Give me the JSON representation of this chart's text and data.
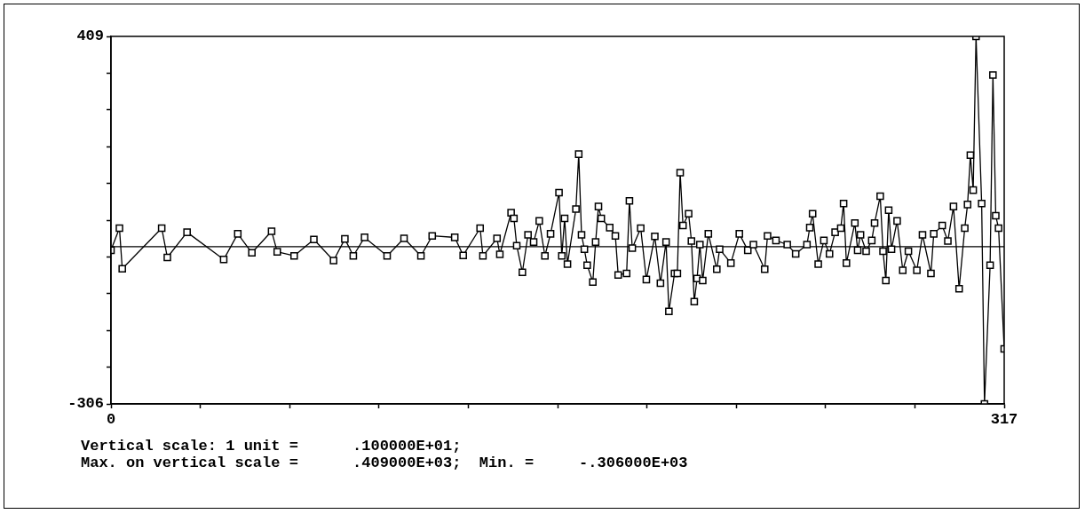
{
  "chart_data": {
    "type": "line",
    "marker": "square",
    "line_style": "solid",
    "x": [
      0,
      3,
      4,
      18,
      20,
      27,
      40,
      45,
      50,
      57,
      59,
      65,
      72,
      79,
      83,
      86,
      90,
      98,
      104,
      110,
      114,
      122,
      125,
      131,
      132,
      137,
      138,
      142,
      143,
      144,
      146,
      148,
      150,
      152,
      154,
      156,
      159,
      160,
      161,
      162,
      165,
      166,
      167,
      168,
      169,
      171,
      172,
      173,
      174,
      177,
      179,
      180,
      183,
      184,
      185,
      188,
      190,
      193,
      195,
      197,
      198,
      200,
      201,
      202,
      203,
      205,
      206,
      207,
      208,
      209,
      210,
      212,
      215,
      216,
      220,
      223,
      226,
      228,
      232,
      233,
      236,
      240,
      243,
      247,
      248,
      249,
      251,
      253,
      255,
      257,
      259,
      260,
      261,
      264,
      265,
      266,
      268,
      270,
      271,
      273,
      274,
      275,
      276,
      277,
      279,
      281,
      283,
      286,
      288,
      291,
      292,
      295,
      297,
      299,
      301,
      303,
      304,
      305,
      306,
      307,
      309,
      310,
      312,
      313,
      314,
      315,
      317
    ],
    "series": [
      {
        "color": "#000000",
        "values": [
          -7,
          36,
          -43,
          36,
          -21,
          28,
          -25,
          25,
          -12,
          30,
          -10,
          -18,
          14,
          -27,
          15,
          -18,
          18,
          -18,
          16,
          -18,
          21,
          18,
          -17,
          36,
          -18,
          16,
          -15,
          66,
          55,
          2,
          -50,
          23,
          9,
          50,
          -18,
          25,
          105,
          -18,
          55,
          -34,
          73,
          180,
          23,
          -5,
          -36,
          -69,
          9,
          78,
          55,
          37,
          21,
          -55,
          -52,
          89,
          -3,
          36,
          -64,
          20,
          -71,
          9,
          -126,
          -52,
          -52,
          144,
          41,
          64,
          11,
          -107,
          -62,
          4,
          -66,
          25,
          -44,
          -5,
          -32,
          25,
          -7,
          4,
          -44,
          21,
          12,
          4,
          -14,
          4,
          37,
          64,
          -34,
          12,
          -14,
          28,
          36,
          84,
          -32,
          46,
          -7,
          23,
          -9,
          12,
          46,
          98,
          -9,
          -66,
          71,
          -5,
          50,
          -46,
          -9,
          -46,
          23,
          -52,
          25,
          41,
          11,
          78,
          -82,
          36,
          82,
          178,
          110,
          409,
          84,
          -306,
          -36,
          334,
          60,
          36,
          -199
        ]
      }
    ],
    "xlim": [
      0,
      317
    ],
    "xticks": [
      0,
      {
        "value": 31.7,
        "label": null
      },
      {
        "value": 63.4,
        "label": null
      },
      {
        "value": 95.1,
        "label": null
      },
      {
        "value": 126.8,
        "label": null
      },
      {
        "value": 158.5,
        "label": null
      },
      {
        "value": 190.2,
        "label": null
      },
      {
        "value": 221.9,
        "label": null
      },
      {
        "value": 253.6,
        "label": null
      },
      {
        "value": 285.3,
        "label": null
      },
      317
    ],
    "ylim": [
      -306,
      409
    ],
    "yticks": [
      -306,
      {
        "value": -234.5,
        "label": null
      },
      {
        "value": -163,
        "label": null
      },
      {
        "value": -91.5,
        "label": null
      },
      {
        "value": -20,
        "label": null
      },
      {
        "value": 51.5,
        "label": null
      },
      {
        "value": 123,
        "label": null
      },
      {
        "value": 194.5,
        "label": null
      },
      {
        "value": 266,
        "label": null
      },
      {
        "value": 337.5,
        "label": null
      },
      409
    ],
    "ref_lines": [
      {
        "axis": "y",
        "value": 0,
        "color": "#000000"
      }
    ],
    "annotations": [
      "Vertical scale: 1 unit =      .100000E+01;",
      "Max. on vertical scale =      .409000E+03;  Min. =     -.306000E+03"
    ]
  }
}
